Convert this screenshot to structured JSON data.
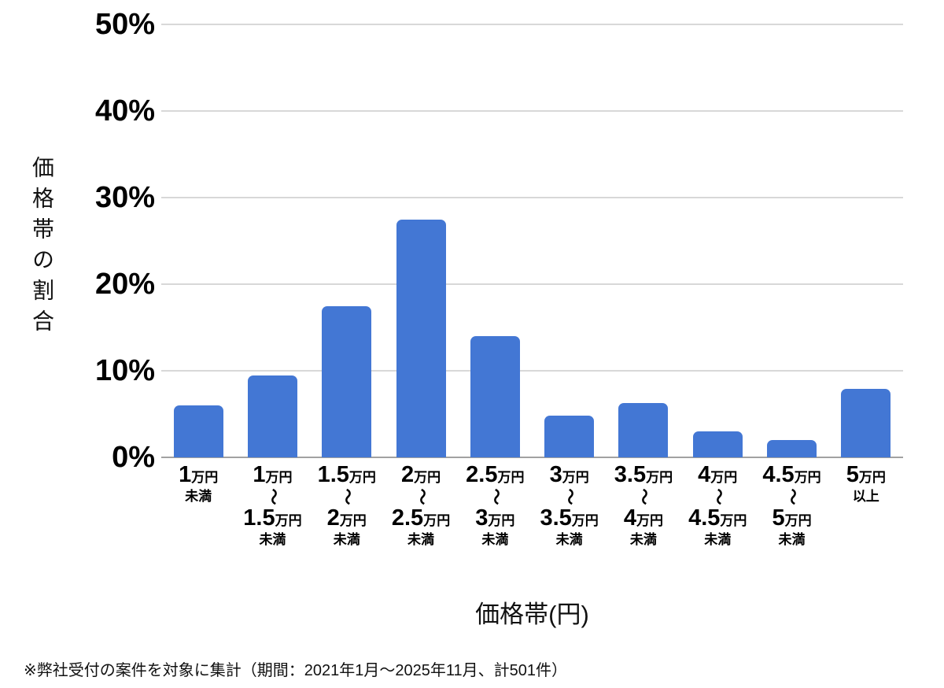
{
  "chart_data": {
    "type": "bar",
    "title": "",
    "xlabel": "価格帯(円)",
    "ylabel": "価格帯の割合",
    "ylim": [
      0,
      50
    ],
    "ytick_step": 10,
    "ytick_labels": [
      "0%",
      "10%",
      "20%",
      "30%",
      "40%",
      "50%"
    ],
    "grid": "horizontal",
    "legend": "none",
    "bar_color": "#4377d4",
    "range_separator": "〜",
    "categories": [
      {
        "lines": [
          {
            "num": "1",
            "unit": "万円"
          }
        ],
        "suffix": "未満"
      },
      {
        "lines": [
          {
            "num": "1",
            "unit": "万円"
          },
          {
            "num": "1.5",
            "unit": "万円"
          }
        ],
        "suffix": "未満"
      },
      {
        "lines": [
          {
            "num": "1.5",
            "unit": "万円"
          },
          {
            "num": "2",
            "unit": "万円"
          }
        ],
        "suffix": "未満"
      },
      {
        "lines": [
          {
            "num": "2",
            "unit": "万円"
          },
          {
            "num": "2.5",
            "unit": "万円"
          }
        ],
        "suffix": "未満"
      },
      {
        "lines": [
          {
            "num": "2.5",
            "unit": "万円"
          },
          {
            "num": "3",
            "unit": "万円"
          }
        ],
        "suffix": "未満"
      },
      {
        "lines": [
          {
            "num": "3",
            "unit": "万円"
          },
          {
            "num": "3.5",
            "unit": "万円"
          }
        ],
        "suffix": "未満"
      },
      {
        "lines": [
          {
            "num": "3.5",
            "unit": "万円"
          },
          {
            "num": "4",
            "unit": "万円"
          }
        ],
        "suffix": "未満"
      },
      {
        "lines": [
          {
            "num": "4",
            "unit": "万円"
          },
          {
            "num": "4.5",
            "unit": "万円"
          }
        ],
        "suffix": "未満"
      },
      {
        "lines": [
          {
            "num": "4.5",
            "unit": "万円"
          },
          {
            "num": "5",
            "unit": "万円"
          }
        ],
        "suffix": "未満"
      },
      {
        "lines": [
          {
            "num": "5",
            "unit": "万円"
          }
        ],
        "suffix": "以上"
      }
    ],
    "values": [
      6.0,
      9.5,
      17.5,
      27.5,
      14.0,
      4.8,
      6.3,
      3.0,
      2.0,
      7.9
    ]
  },
  "footnote": "※弊社受付の案件を対象に集計（期間：2021年1月～2025年11月、計501件）"
}
